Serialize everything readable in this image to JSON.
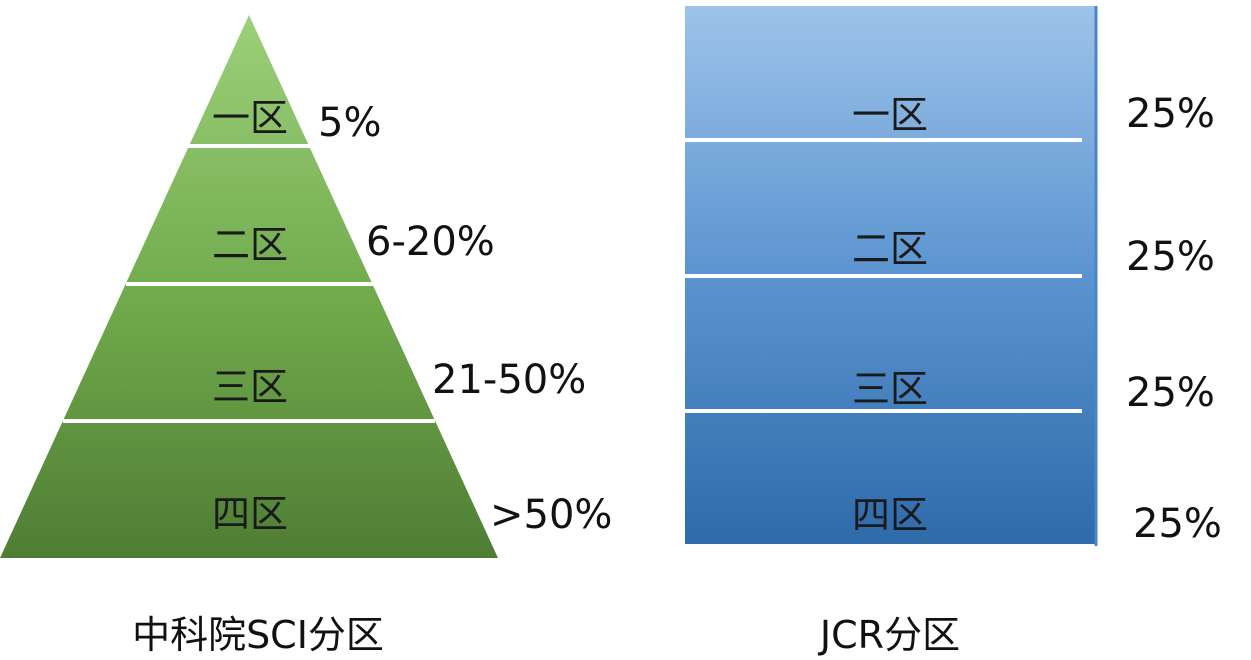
{
  "cas": {
    "caption": "中科院SCI分区",
    "tiers": [
      {
        "name": "一区",
        "range": "5%"
      },
      {
        "name": "二区",
        "range": "6-20%"
      },
      {
        "name": "三区",
        "range": "21-50%"
      },
      {
        "name": "四区",
        "range": ">50%"
      }
    ],
    "colors": {
      "top": "#9cd07a",
      "bottom": "#4f7d34",
      "divider": "#ffffff"
    }
  },
  "jcr": {
    "caption": "JCR分区",
    "tiers": [
      {
        "name": "一区",
        "share": "25%"
      },
      {
        "name": "二区",
        "share": "25%"
      },
      {
        "name": "三区",
        "share": "25%"
      },
      {
        "name": "四区",
        "share": "25%"
      }
    ],
    "colors": {
      "top": "#9dc3e9",
      "bottom": "#2e6bab",
      "divider": "#ffffff"
    }
  }
}
